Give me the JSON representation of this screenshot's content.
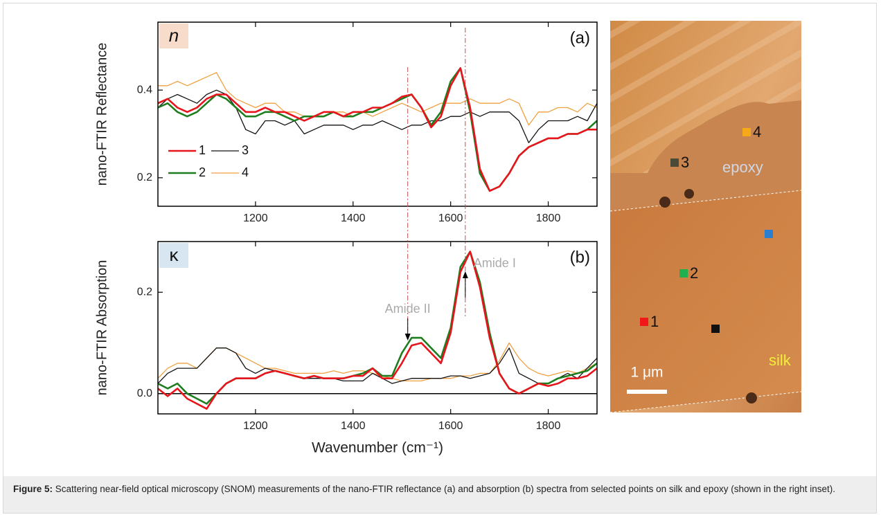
{
  "chart_data": [
    {
      "type": "line",
      "ylabel": "nano-FTIR Reflectance",
      "variable_label": "n",
      "panel_label": "(a)",
      "x": [
        1000,
        1020,
        1040,
        1060,
        1080,
        1100,
        1120,
        1140,
        1160,
        1180,
        1200,
        1220,
        1240,
        1260,
        1280,
        1300,
        1320,
        1340,
        1360,
        1380,
        1400,
        1420,
        1440,
        1460,
        1480,
        1500,
        1520,
        1540,
        1560,
        1580,
        1600,
        1620,
        1640,
        1660,
        1680,
        1700,
        1720,
        1740,
        1760,
        1780,
        1800,
        1820,
        1840,
        1860,
        1880,
        1900
      ],
      "xlim": [
        1000,
        1900
      ],
      "xticks": [
        1200,
        1400,
        1600,
        1800
      ],
      "ylim": [
        0.135,
        0.555
      ],
      "yticks": [
        0.2,
        0.4
      ],
      "legend": "lower left",
      "series": [
        {
          "name": "1",
          "color": "#e8141c",
          "values": [
            0.37,
            0.38,
            0.36,
            0.35,
            0.36,
            0.38,
            0.39,
            0.39,
            0.37,
            0.35,
            0.35,
            0.36,
            0.35,
            0.35,
            0.34,
            0.33,
            0.34,
            0.35,
            0.35,
            0.34,
            0.35,
            0.35,
            0.36,
            0.36,
            0.37,
            0.385,
            0.39,
            0.36,
            0.315,
            0.34,
            0.41,
            0.45,
            0.36,
            0.22,
            0.17,
            0.18,
            0.21,
            0.25,
            0.27,
            0.28,
            0.29,
            0.29,
            0.3,
            0.3,
            0.31,
            0.31
          ]
        },
        {
          "name": "2",
          "color": "#1e7d1e",
          "values": [
            0.36,
            0.37,
            0.35,
            0.34,
            0.35,
            0.37,
            0.39,
            0.38,
            0.36,
            0.34,
            0.34,
            0.35,
            0.35,
            0.34,
            0.33,
            0.34,
            0.34,
            0.34,
            0.35,
            0.34,
            0.34,
            0.35,
            0.35,
            0.36,
            0.37,
            0.38,
            0.39,
            0.36,
            0.32,
            0.35,
            0.42,
            0.45,
            0.35,
            0.21,
            0.17,
            0.18,
            0.21,
            0.25,
            0.27,
            0.28,
            0.29,
            0.29,
            0.3,
            0.3,
            0.31,
            0.33
          ]
        },
        {
          "name": "3",
          "color": "#111111",
          "values": [
            0.36,
            0.38,
            0.39,
            0.38,
            0.37,
            0.39,
            0.4,
            0.39,
            0.36,
            0.31,
            0.3,
            0.33,
            0.33,
            0.32,
            0.33,
            0.3,
            0.31,
            0.32,
            0.32,
            0.32,
            0.31,
            0.32,
            0.32,
            0.33,
            0.32,
            0.31,
            0.32,
            0.32,
            0.33,
            0.33,
            0.34,
            0.34,
            0.35,
            0.34,
            0.35,
            0.35,
            0.35,
            0.33,
            0.28,
            0.31,
            0.33,
            0.33,
            0.33,
            0.34,
            0.33,
            0.37
          ]
        },
        {
          "name": "4",
          "color": "#f0a040",
          "values": [
            0.41,
            0.41,
            0.42,
            0.41,
            0.42,
            0.43,
            0.44,
            0.4,
            0.38,
            0.37,
            0.36,
            0.37,
            0.37,
            0.35,
            0.35,
            0.34,
            0.34,
            0.34,
            0.35,
            0.35,
            0.34,
            0.35,
            0.34,
            0.35,
            0.36,
            0.37,
            0.36,
            0.35,
            0.36,
            0.37,
            0.37,
            0.37,
            0.38,
            0.37,
            0.37,
            0.37,
            0.38,
            0.37,
            0.32,
            0.35,
            0.35,
            0.36,
            0.36,
            0.35,
            0.37,
            0.36
          ]
        }
      ]
    },
    {
      "type": "line",
      "xlabel": "Wavenumber (cm⁻¹)",
      "ylabel": "nano-FTIR Absorption",
      "variable_label": "κ",
      "panel_label": "(b)",
      "annotations": [
        "Amide II",
        "Amide I"
      ],
      "vlines": [
        1512,
        1630
      ],
      "zero_line": true,
      "x": [
        1000,
        1020,
        1040,
        1060,
        1080,
        1100,
        1120,
        1140,
        1160,
        1180,
        1200,
        1220,
        1240,
        1260,
        1280,
        1300,
        1320,
        1340,
        1360,
        1380,
        1400,
        1420,
        1440,
        1460,
        1480,
        1500,
        1520,
        1540,
        1560,
        1580,
        1600,
        1620,
        1640,
        1660,
        1680,
        1700,
        1720,
        1740,
        1760,
        1780,
        1800,
        1820,
        1840,
        1860,
        1880,
        1900
      ],
      "xlim": [
        1000,
        1900
      ],
      "xticks": [
        1200,
        1400,
        1600,
        1800
      ],
      "ylim": [
        -0.04,
        0.3
      ],
      "yticks": [
        {
          "value": 0,
          "label": "0.0"
        },
        0.2
      ],
      "series": [
        {
          "color": "#e8141c",
          "values": [
            0.01,
            -0.005,
            0.01,
            -0.01,
            -0.02,
            -0.03,
            0.0,
            0.02,
            0.03,
            0.03,
            0.03,
            0.04,
            0.045,
            0.04,
            0.035,
            0.03,
            0.035,
            0.03,
            0.03,
            0.03,
            0.035,
            0.035,
            0.05,
            0.03,
            0.03,
            0.06,
            0.095,
            0.1,
            0.08,
            0.06,
            0.12,
            0.24,
            0.28,
            0.21,
            0.11,
            0.04,
            0.01,
            0.0,
            0.01,
            0.02,
            0.015,
            0.02,
            0.03,
            0.03,
            0.035,
            0.05
          ]
        },
        {
          "color": "#1e7d1e",
          "values": [
            0.02,
            0.01,
            0.02,
            0.0,
            -0.01,
            -0.02,
            0.0,
            0.02,
            0.03,
            0.03,
            0.03,
            0.04,
            0.045,
            0.04,
            0.035,
            0.03,
            0.035,
            0.03,
            0.03,
            0.03,
            0.035,
            0.04,
            0.05,
            0.035,
            0.035,
            0.08,
            0.11,
            0.11,
            0.09,
            0.07,
            0.13,
            0.25,
            0.28,
            0.22,
            0.12,
            0.04,
            0.01,
            0.0,
            0.01,
            0.02,
            0.02,
            0.03,
            0.035,
            0.04,
            0.045,
            0.06
          ]
        },
        {
          "color": "#111111",
          "values": [
            0.02,
            0.04,
            0.05,
            0.05,
            0.05,
            0.07,
            0.09,
            0.09,
            0.08,
            0.05,
            0.04,
            0.05,
            0.045,
            0.04,
            0.035,
            0.03,
            0.03,
            0.03,
            0.03,
            0.025,
            0.025,
            0.025,
            0.04,
            0.03,
            0.02,
            0.025,
            0.03,
            0.03,
            0.03,
            0.03,
            0.035,
            0.035,
            0.03,
            0.035,
            0.04,
            0.06,
            0.09,
            0.04,
            0.03,
            0.02,
            0.02,
            0.03,
            0.04,
            0.03,
            0.05,
            0.07
          ]
        },
        {
          "color": "#f0a040",
          "values": [
            0.03,
            0.05,
            0.06,
            0.06,
            0.05,
            0.07,
            0.09,
            0.09,
            0.08,
            0.07,
            0.06,
            0.05,
            0.05,
            0.045,
            0.04,
            0.04,
            0.04,
            0.04,
            0.045,
            0.04,
            0.045,
            0.045,
            0.04,
            0.035,
            0.03,
            0.025,
            0.025,
            0.025,
            0.03,
            0.03,
            0.03,
            0.035,
            0.035,
            0.04,
            0.04,
            0.065,
            0.1,
            0.07,
            0.05,
            0.04,
            0.035,
            0.04,
            0.045,
            0.04,
            0.05,
            0.06
          ]
        }
      ]
    }
  ],
  "inset": {
    "points": [
      {
        "label": "4",
        "color": "#f5a818"
      },
      {
        "label": "3",
        "color": "#4a4a38"
      },
      {
        "label": null,
        "color": "#2a7fd0"
      },
      {
        "label": "2",
        "color": "#20b050"
      },
      {
        "label": "1",
        "color": "#f01818"
      },
      {
        "label": null,
        "color": "#111111"
      }
    ],
    "regions": [
      "epoxy",
      "silk"
    ],
    "scale_bar": "1 μm"
  },
  "caption": {
    "label": "Figure 5:",
    "text": " Scattering near-field optical microscopy (SNOM) measurements of the nano-FTIR reflectance (a) and absorption (b) spectra from selected points on silk and epoxy (shown in the right inset)."
  }
}
